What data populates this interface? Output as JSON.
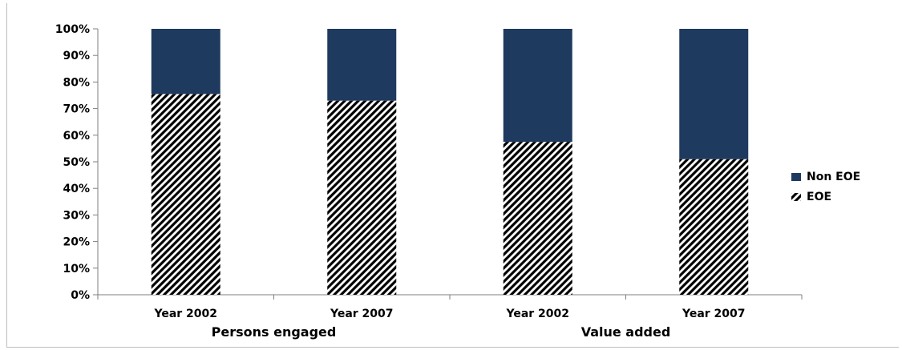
{
  "chart_data": {
    "type": "bar",
    "stacked": true,
    "percent_stacked": true,
    "categories": [
      "Year 2002",
      "Year 2007",
      "Year 2002",
      "Year 2007"
    ],
    "groups": [
      {
        "label": "Persons engaged",
        "categories": [
          0,
          1
        ]
      },
      {
        "label": "Value added",
        "categories": [
          2,
          3
        ]
      }
    ],
    "series": [
      {
        "name": "EOE",
        "pattern": "diagonal-hatch",
        "values": [
          75.5,
          73,
          57.5,
          51
        ]
      },
      {
        "name": "Non EOE",
        "color": "#1f3a5f",
        "values": [
          24.5,
          27,
          42.5,
          49
        ]
      }
    ],
    "y_ticks": [
      "0%",
      "10%",
      "20%",
      "30%",
      "40%",
      "50%",
      "60%",
      "70%",
      "80%",
      "90%",
      "100%"
    ],
    "ylim": [
      0,
      100
    ],
    "grid": false,
    "legend_position": "right",
    "title": "",
    "xlabel": "",
    "ylabel": ""
  }
}
